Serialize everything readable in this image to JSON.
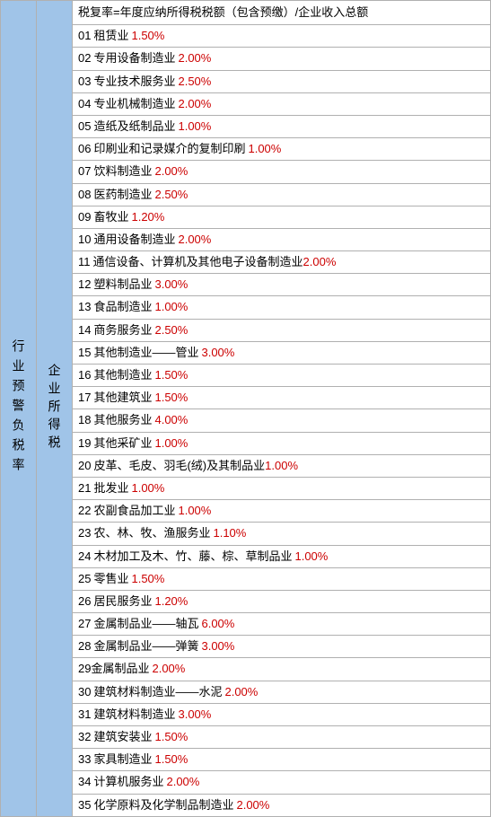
{
  "leftLabel": "行业预警负税率",
  "midLabel": "企业所得税",
  "headerText": "税复率=年度应纳所得税税额（包含预缴）/企业收入总额",
  "colors": {
    "blueBackground": "#a0c4e8",
    "whiteBackground": "#ffffff",
    "borderColor": "#b0b0b0",
    "textColor": "#000000",
    "rateColor": "#cc0000"
  },
  "rows": [
    {
      "num": "01",
      "name": "租赁业",
      "rate": "1.50%",
      "space": true
    },
    {
      "num": "02",
      "name": "专用设备制造业",
      "rate": "2.00%",
      "space": true
    },
    {
      "num": "03",
      "name": "专业技术服务业",
      "rate": "2.50%",
      "space": true
    },
    {
      "num": "04",
      "name": "专业机械制造业",
      "rate": "2.00%",
      "space": true
    },
    {
      "num": "05",
      "name": "造纸及纸制品业",
      "rate": "1.00%",
      "space": true
    },
    {
      "num": "06",
      "name": "印刷业和记录媒介的复制印刷",
      "rate": "1.00%",
      "space": true
    },
    {
      "num": "07",
      "name": "饮料制造业",
      "rate": "2.00%",
      "space": true
    },
    {
      "num": "08",
      "name": "医药制造业",
      "rate": "2.50%",
      "space": true
    },
    {
      "num": "09",
      "name": "畜牧业",
      "rate": "1.20%",
      "space": true
    },
    {
      "num": "10",
      "name": "通用设备制造业",
      "rate": "2.00%",
      "space": true
    },
    {
      "num": "11",
      "name": "通信设备、计算机及其他电子设备制造业",
      "rate": "2.00%",
      "space": false
    },
    {
      "num": "12",
      "name": "塑料制品业",
      "rate": "3.00%",
      "space": true
    },
    {
      "num": "13",
      "name": "食品制造业",
      "rate": "1.00%",
      "space": true
    },
    {
      "num": "14",
      "name": "商务服务业",
      "rate": "2.50%",
      "space": true
    },
    {
      "num": "15",
      "name": "其他制造业——管业",
      "rate": "3.00%",
      "space": true
    },
    {
      "num": "16",
      "name": "其他制造业",
      "rate": "1.50%",
      "space": true
    },
    {
      "num": "17",
      "name": "其他建筑业",
      "rate": "1.50%",
      "space": true
    },
    {
      "num": "18",
      "name": "其他服务业",
      "rate": "4.00%",
      "space": true
    },
    {
      "num": "19",
      "name": "其他采矿业",
      "rate": "1.00%",
      "space": true
    },
    {
      "num": "20",
      "name": "皮革、毛皮、羽毛(绒)及其制品业",
      "rate": "1.00%",
      "space": false
    },
    {
      "num": "21",
      "name": "批发业",
      "rate": "1.00%",
      "space": true
    },
    {
      "num": "22",
      "name": "农副食品加工业",
      "rate": "1.00%",
      "space": true
    },
    {
      "num": "23",
      "name": "农、林、牧、渔服务业",
      "rate": "1.10%",
      "space": true
    },
    {
      "num": "24",
      "name": "木材加工及木、竹、藤、棕、草制品业",
      "rate": "1.00%",
      "space": true
    },
    {
      "num": "25",
      "name": "零售业",
      "rate": "1.50%",
      "space": true
    },
    {
      "num": "26",
      "name": "居民服务业",
      "rate": "1.20%",
      "space": true
    },
    {
      "num": "27",
      "name": "金属制品业——轴瓦",
      "rate": "6.00%",
      "space": true
    },
    {
      "num": "28",
      "name": "金属制品业——弹簧",
      "rate": "3.00%",
      "space": true
    },
    {
      "num": "29",
      "name": "金属制品业",
      "rate": "2.00%",
      "space": true,
      "nospace_num": true
    },
    {
      "num": "30",
      "name": "建筑材料制造业——水泥",
      "rate": "2.00%",
      "space": true
    },
    {
      "num": "31",
      "name": "建筑材料制造业",
      "rate": "3.00%",
      "space": true
    },
    {
      "num": "32",
      "name": "建筑安装业",
      "rate": "1.50%",
      "space": true
    },
    {
      "num": "33",
      "name": "家具制造业",
      "rate": "1.50%",
      "space": true
    },
    {
      "num": "34",
      "name": "计算机服务业",
      "rate": "2.00%",
      "space": true
    },
    {
      "num": "35",
      "name": "化学原料及化学制品制造业",
      "rate": "2.00%",
      "space": true
    }
  ]
}
